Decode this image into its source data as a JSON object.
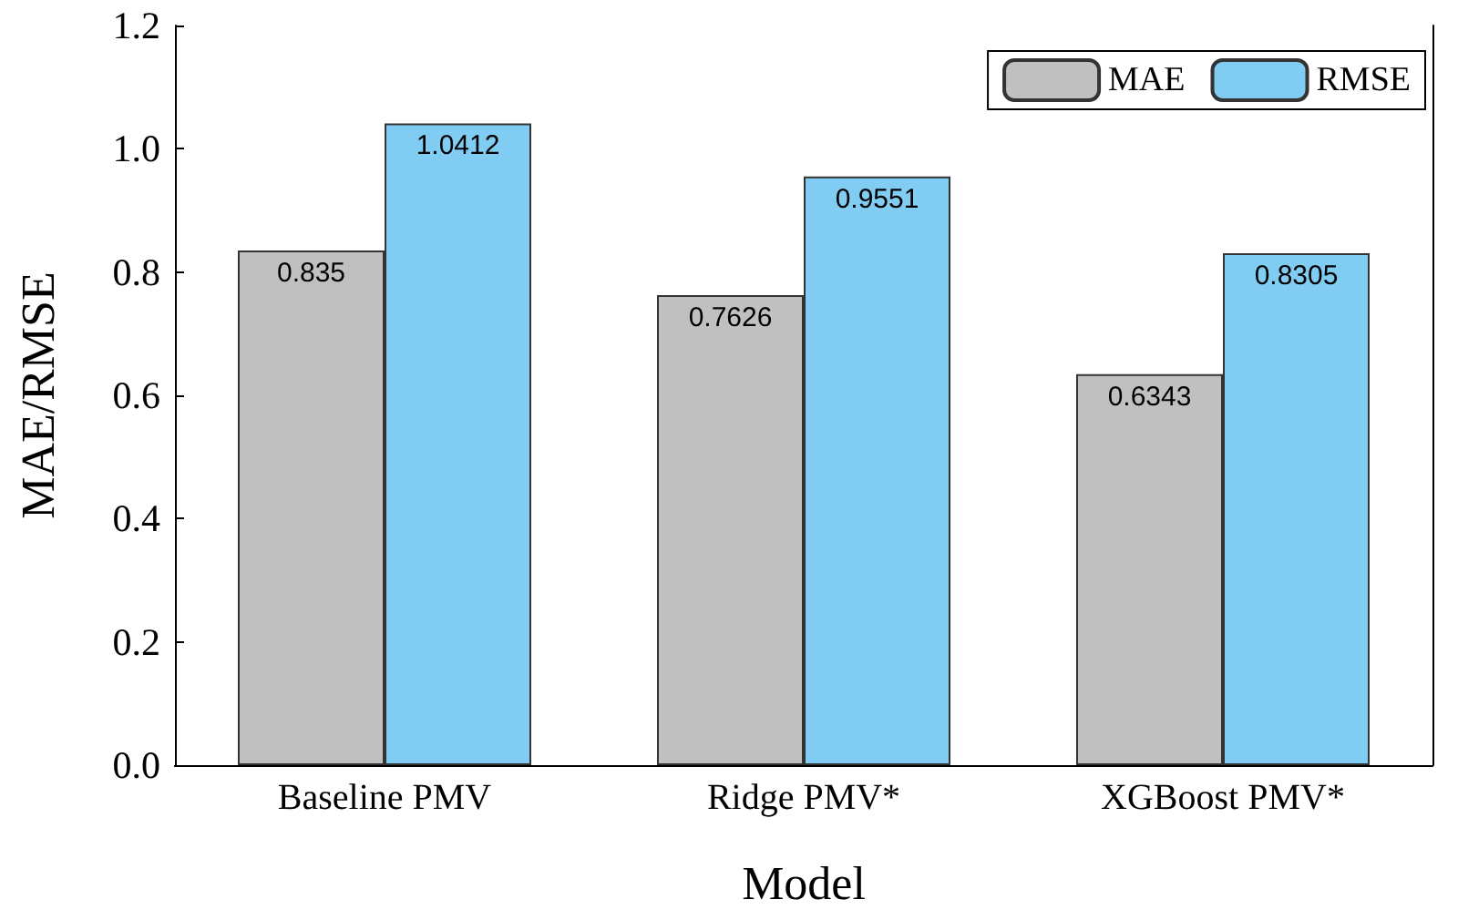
{
  "chart_data": {
    "type": "bar",
    "xlabel": "Model",
    "ylabel": "MAE/RMSE",
    "categories": [
      "Baseline PMV",
      "Ridge PMV*",
      "XGBoost PMV*"
    ],
    "series": [
      {
        "name": "MAE",
        "color": "#c0c0c0",
        "values": [
          0.835,
          0.7626,
          0.6343
        ]
      },
      {
        "name": "RMSE",
        "color": "#80ccf2",
        "values": [
          1.0412,
          0.9551,
          0.8305
        ]
      }
    ],
    "ylim": [
      0,
      1.2
    ],
    "yticks": [
      {
        "value": 0,
        "label": "0.0"
      },
      0.2,
      0.4,
      0.6,
      0.8,
      {
        "value": 1,
        "label": "1.0"
      },
      {
        "value": 1.2,
        "label": "1.2"
      }
    ],
    "data_labels": true,
    "legend": "top right",
    "grid": false
  }
}
